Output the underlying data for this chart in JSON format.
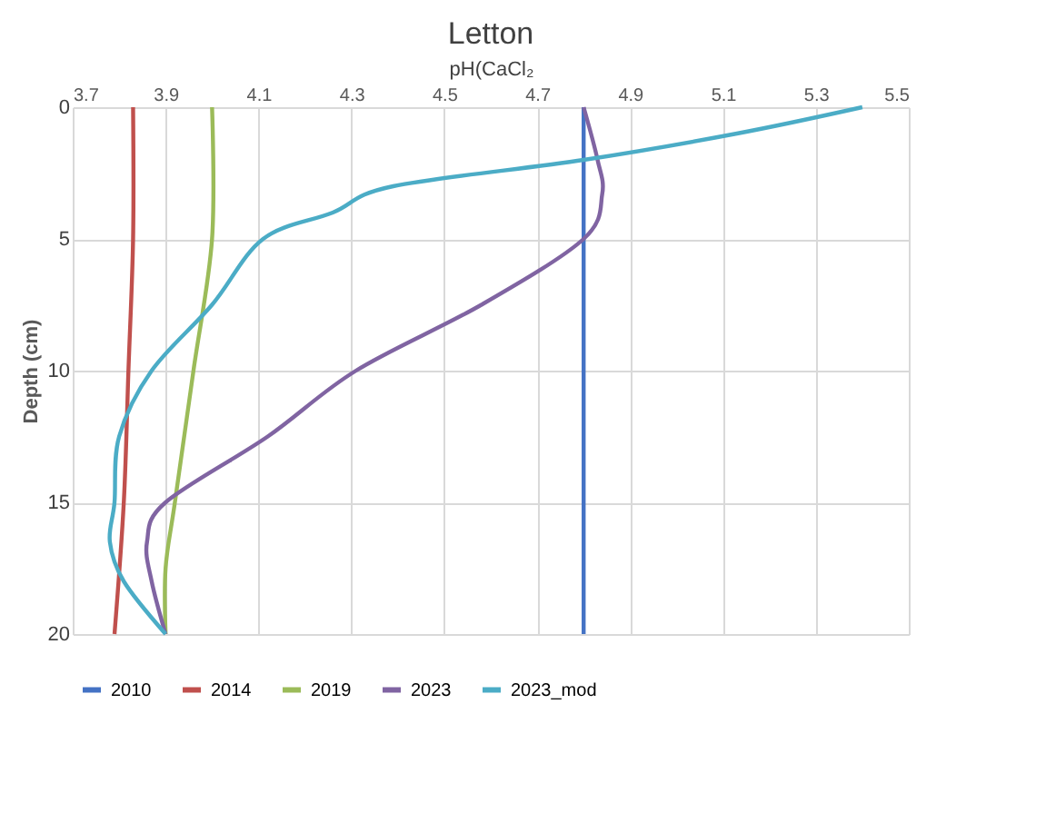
{
  "chart_data": {
    "type": "line",
    "title": "Letton",
    "xlabel": "pH(CaCl₂",
    "ylabel": "Depth (cm)",
    "xlim": [
      3.7,
      5.5
    ],
    "xticks": [
      3.7,
      3.9,
      4.1,
      4.3,
      4.5,
      4.7,
      4.9,
      5.1,
      5.3,
      5.5
    ],
    "ylim": [
      20,
      0
    ],
    "yticks": [
      0,
      5,
      10,
      15,
      20
    ],
    "grid": true,
    "legend": "bottom",
    "marker": "none",
    "line_style": "solid",
    "series": [
      {
        "name": "2010",
        "color": "#4472c4",
        "x": [
          4.8,
          4.8
        ],
        "values": [
          0,
          20
        ]
      },
      {
        "name": "2014",
        "color": "#c0504d",
        "x": [
          3.83,
          3.83,
          3.82,
          3.81,
          3.79
        ],
        "values": [
          0,
          5,
          10,
          15,
          20
        ]
      },
      {
        "name": "2019",
        "color": "#9bbb59",
        "x": [
          4.0,
          4.0,
          3.96,
          3.92,
          3.9,
          3.9
        ],
        "values": [
          0,
          5,
          10,
          15,
          17.5,
          20
        ]
      },
      {
        "name": "2023",
        "color": "#8064a2",
        "x": [
          4.8,
          4.83,
          4.84,
          4.8,
          4.58,
          4.31,
          4.12,
          3.9,
          3.86,
          3.87,
          3.9
        ],
        "values": [
          0,
          2,
          3.3,
          5,
          7.5,
          10,
          12.5,
          15,
          16.5,
          18,
          20
        ]
      },
      {
        "name": "2023_mod",
        "color": "#4bacc6",
        "x": [
          5.4,
          5.13,
          4.8,
          4.39,
          4.26,
          4.11,
          4.0,
          3.87,
          3.8,
          3.79,
          3.78,
          3.81,
          3.9
        ],
        "values": [
          0,
          1,
          2,
          3,
          4,
          5,
          7.5,
          10,
          12.5,
          15,
          16.5,
          18,
          20
        ]
      }
    ]
  }
}
